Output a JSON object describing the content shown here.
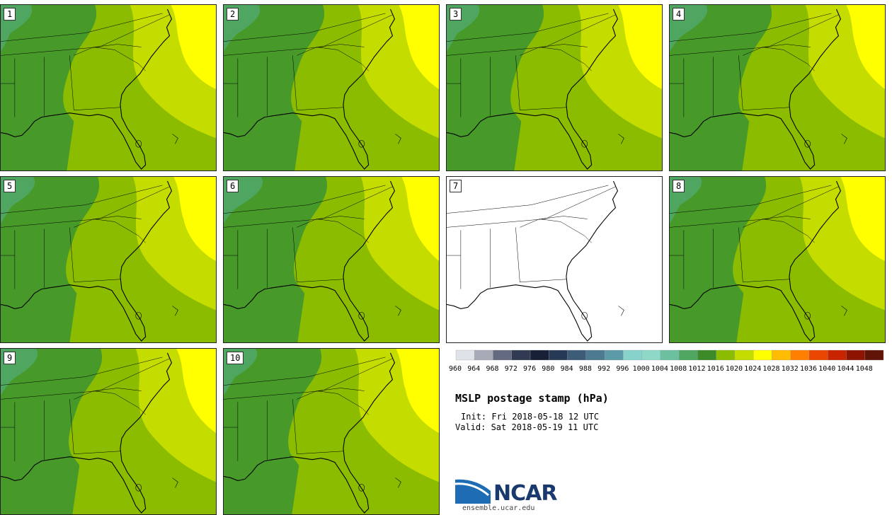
{
  "panels": [
    {
      "label": "1",
      "status": "data"
    },
    {
      "label": "2",
      "status": "data"
    },
    {
      "label": "3",
      "status": "data"
    },
    {
      "label": "4",
      "status": "data"
    },
    {
      "label": "5",
      "status": "data"
    },
    {
      "label": "6",
      "status": "data"
    },
    {
      "label": "7",
      "status": "missing"
    },
    {
      "label": "8",
      "status": "data"
    },
    {
      "label": "9",
      "status": "data"
    },
    {
      "label": "10",
      "status": "data"
    }
  ],
  "colorbar": {
    "labels": [
      "960",
      "964",
      "968",
      "972",
      "976",
      "980",
      "984",
      "988",
      "992",
      "996",
      "1000",
      "1004",
      "1008",
      "1012",
      "1016",
      "1020",
      "1024",
      "1028",
      "1032",
      "1036",
      "1040",
      "1044",
      "1048"
    ],
    "colors": [
      "#e0e2ea",
      "#a8aab8",
      "#646a80",
      "#303a52",
      "#182038",
      "#263a56",
      "#3c5c78",
      "#4c7a90",
      "#5c9aa8",
      "#88d2cc",
      "#8ed8c8",
      "#6cc0a0",
      "#4ea660",
      "#3c8a28",
      "#8cbc00",
      "#c4dc00",
      "#ffff00",
      "#ffbc00",
      "#ff8000",
      "#ea4800",
      "#c82400",
      "#8c1400",
      "#601408"
    ]
  },
  "map_colors": {
    "dark_green": "#479a2a",
    "mid_green": "#8cbc00",
    "light_green": "#c4dc00",
    "yellow": "#ffff00",
    "teal_green": "#4ea660"
  },
  "title": "MSLP postage stamp (hPa)",
  "init": "Init: Fri 2018-05-18 12 UTC",
  "valid": "Valid: Sat 2018-05-19 11 UTC",
  "logo": {
    "text": "NCAR",
    "url": "ensemble.ucar.edu"
  }
}
